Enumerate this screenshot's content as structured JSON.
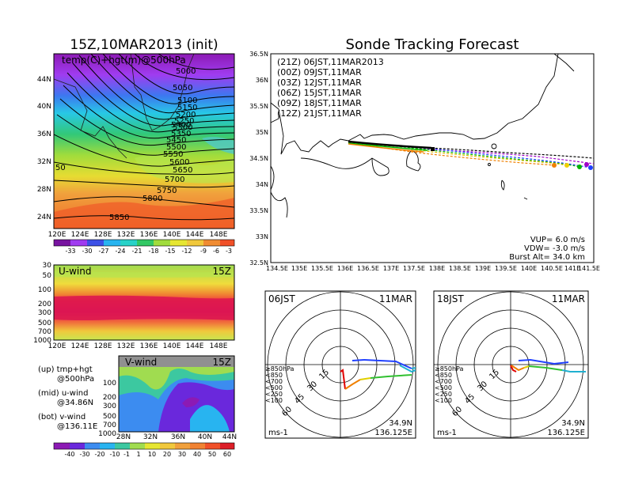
{
  "main_title": "Sonde Tracking Forecast",
  "left_title": "15Z,10MAR2013 (init)",
  "temp_panel": {
    "label": "temp(C)+hgt(m)@500hPa",
    "lat_ticks": [
      "44N",
      "40N",
      "36N",
      "32N",
      "28N",
      "24N"
    ],
    "lon_ticks": [
      "120E",
      "124E",
      "128E",
      "132E",
      "136E",
      "140E",
      "144E",
      "148E"
    ],
    "contour_labels": [
      "5000",
      "5050",
      "5100",
      "5150",
      "5200",
      "5250",
      "5300",
      "5350",
      "5400",
      "5450",
      "5500",
      "5550",
      "5600",
      "5650",
      "5700",
      "5750",
      "5800",
      "5850",
      "50"
    ],
    "colorbar_ticks": [
      "-33",
      "-30",
      "-27",
      "-24",
      "-21",
      "-18",
      "-15",
      "-12",
      "-9",
      "-6",
      "-3"
    ]
  },
  "u_panel": {
    "label": "U-wind",
    "time": "15Z",
    "y_ticks": [
      "30",
      "50",
      "100",
      "200",
      "300",
      "500",
      "700",
      "1000"
    ],
    "x_ticks": [
      "120E",
      "124E",
      "128E",
      "132E",
      "136E",
      "140E",
      "144E",
      "148E"
    ]
  },
  "v_panel": {
    "label": "V-wind",
    "time": "15Z",
    "y_ticks": [
      "100",
      "200",
      "300",
      "500",
      "700",
      "1000"
    ],
    "x_ticks": [
      "28N",
      "32N",
      "36N",
      "40N",
      "44N"
    ],
    "colorbar_ticks": [
      "-40",
      "-30",
      "-20",
      "-10",
      "-1",
      "1",
      "10",
      "20",
      "30",
      "40",
      "50",
      "60"
    ]
  },
  "legend_text": {
    "up1": "(up) tmp+hgt",
    "up2": "@500hPa",
    "mid1": "(mid) u-wind",
    "mid2": "@34.86N",
    "bot1": "(bot) v-wind",
    "bot2": "@136.11E"
  },
  "track_map": {
    "lat_ticks": [
      "36.5N",
      "36N",
      "35.5N",
      "35N",
      "34.5N",
      "34N",
      "33.5N",
      "33N",
      "32.5N"
    ],
    "lon_ticks": [
      "134.5E",
      "135E",
      "135.5E",
      "136E",
      "136.5E",
      "137E",
      "137.5E",
      "138E",
      "138.5E",
      "139E",
      "139.5E",
      "140E",
      "140.5E",
      "141E",
      "141.5E"
    ],
    "launches": [
      {
        "label": "(21Z)  06JST,11MAR2013",
        "color": "#000000"
      },
      {
        "label": "(00Z)  09JST,11MAR",
        "color": "#a000c8"
      },
      {
        "label": "(03Z)  12JST,11MAR",
        "color": "#2040ff"
      },
      {
        "label": "(06Z)  15JST,11MAR",
        "color": "#00b400"
      },
      {
        "label": "(09Z)  18JST,11MAR",
        "color": "#f0d000"
      },
      {
        "label": "(12Z)  21JST,11MAR",
        "color": "#f08000"
      }
    ],
    "vup": "VUP= 6.0 m/s",
    "vdw": "VDW= -3.0 m/s",
    "burst": "Burst Alt= 34.0 km"
  },
  "hodographs": [
    {
      "time": "06JST",
      "date": "11MAR",
      "lat": "34.9N",
      "lon": "136.125E",
      "unit": "ms-1",
      "rings": [
        "15",
        "30",
        "45",
        "60"
      ],
      "legend": [
        {
          "t": "≥850hPa",
          "c": "#e00000"
        },
        {
          "t": "<850",
          "c": "#f08000"
        },
        {
          "t": "<700",
          "c": "#e0d000"
        },
        {
          "t": "<500",
          "c": "#30c030"
        },
        {
          "t": "<250",
          "c": "#20b0d0"
        },
        {
          "t": "<100",
          "c": "#2040ff"
        }
      ]
    },
    {
      "time": "18JST",
      "date": "11MAR",
      "lat": "34.9N",
      "lon": "136.125E",
      "unit": "ms-1",
      "rings": [
        "15",
        "30",
        "45",
        "60"
      ],
      "legend": [
        {
          "t": "≥850hPa",
          "c": "#e00000"
        },
        {
          "t": "<850",
          "c": "#f08000"
        },
        {
          "t": "<700",
          "c": "#e0d000"
        },
        {
          "t": "<500",
          "c": "#30c030"
        },
        {
          "t": "<250",
          "c": "#20b0d0"
        },
        {
          "t": "<100",
          "c": "#2040ff"
        }
      ]
    }
  ]
}
